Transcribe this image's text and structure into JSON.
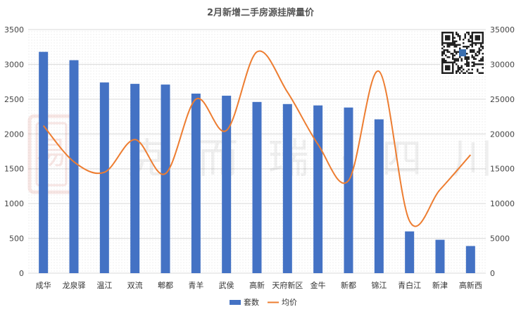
{
  "chart_data": {
    "type": "bar",
    "title": "2月新增二手房源挂牌量价",
    "categories": [
      "成华",
      "龙泉驿",
      "温江",
      "双流",
      "郫都",
      "青羊",
      "武侯",
      "高新",
      "天府新区",
      "金牛",
      "新都",
      "锦江",
      "青白江",
      "新津",
      "高新西"
    ],
    "series": [
      {
        "name": "套数",
        "type": "bar",
        "axis": "left",
        "color": "#4472C4",
        "values": [
          3180,
          3060,
          2740,
          2720,
          2710,
          2580,
          2550,
          2460,
          2430,
          2410,
          2380,
          2210,
          600,
          480,
          390
        ]
      },
      {
        "name": "均价",
        "type": "line",
        "axis": "right",
        "color": "#ED7D31",
        "values": [
          21200,
          16000,
          14500,
          19200,
          14300,
          25000,
          20500,
          31800,
          26000,
          18500,
          13300,
          29000,
          7500,
          12000,
          17000
        ]
      }
    ],
    "y_left": {
      "min": 0,
      "max": 3500,
      "ticks": [
        "0",
        "500",
        "1000",
        "1500",
        "2000",
        "2500",
        "3000",
        "3500"
      ]
    },
    "y_right": {
      "min": 0,
      "max": 35000,
      "ticks": [
        "0",
        "5000",
        "10000",
        "15000",
        "20000",
        "25000",
        "30000",
        "35000"
      ]
    },
    "grid": true,
    "legend": "bottom"
  },
  "watermark": {
    "text": "克而瑞·四川",
    "seal_text": "易"
  },
  "qr_icon": "qr-code-icon"
}
